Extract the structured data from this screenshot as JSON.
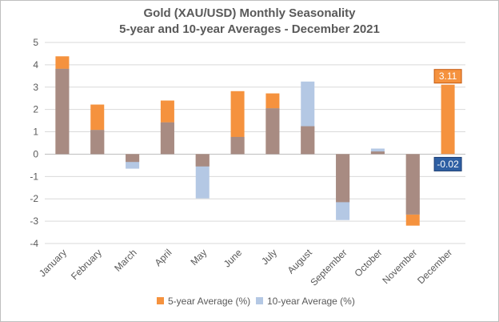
{
  "chart_data": {
    "type": "bar",
    "title": "Gold (XAU/USD) Monthly Seasonality",
    "subtitle": "5-year and 10-year Averages - December 2021",
    "categories": [
      "January",
      "February",
      "March",
      "April",
      "May",
      "June",
      "July",
      "August",
      "September",
      "October",
      "November",
      "December"
    ],
    "series": [
      {
        "name": "5-year Average (%)",
        "color": "#f5923e",
        "values": [
          4.38,
          2.22,
          -0.35,
          2.4,
          -0.55,
          2.82,
          2.72,
          1.25,
          -2.15,
          0.12,
          -3.2,
          3.11
        ]
      },
      {
        "name": "10-year Average (%)",
        "color": "#b4c8e4",
        "values": [
          3.82,
          1.08,
          -0.65,
          1.42,
          -1.98,
          0.77,
          2.05,
          3.25,
          -2.95,
          0.25,
          -2.7,
          -0.02
        ]
      }
    ],
    "overlap_color": "#a88b82",
    "ylim": [
      -4,
      5
    ],
    "yticks": [
      5,
      4,
      3,
      2,
      1,
      0,
      -1,
      -2,
      -3,
      -4
    ],
    "grid": true,
    "legend": "bottom",
    "data_labels": [
      {
        "text": "3.11",
        "category": "December",
        "series": "5-year Average (%)",
        "bg": "#f5923e",
        "border": "#c55a11"
      },
      {
        "text": "-0.02",
        "category": "December",
        "series": "10-year Average (%)",
        "bg": "#2e5fa3",
        "border": "#1f3f73"
      }
    ]
  }
}
